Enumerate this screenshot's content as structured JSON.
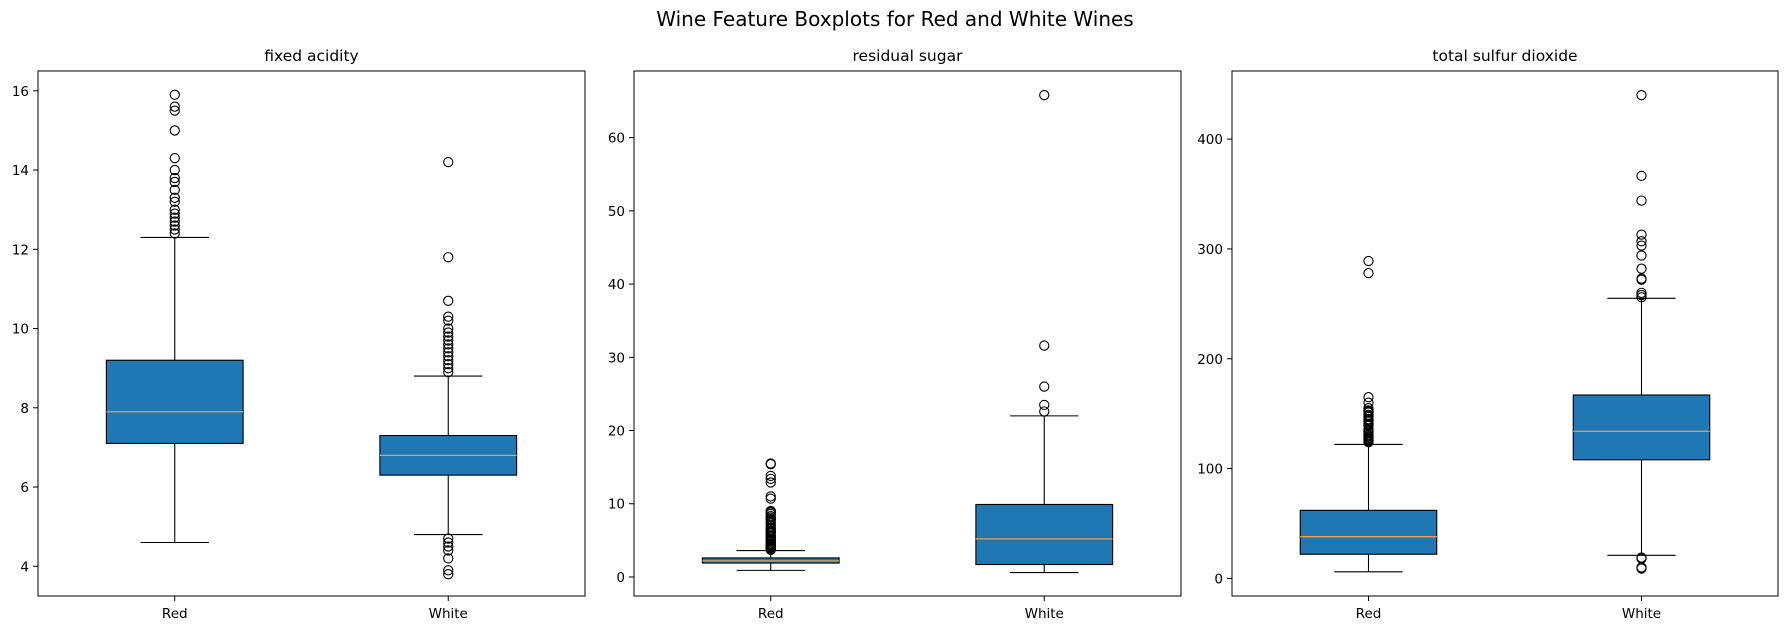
{
  "figure": {
    "title": "Wine Feature Boxplots for Red and White Wines"
  },
  "colors": {
    "box_fill": "#1f77b4",
    "median": "#e8a253",
    "stroke": "#000000"
  },
  "chart_data": [
    {
      "type": "boxplot",
      "title": "fixed acidity",
      "categories": [
        "Red",
        "White"
      ],
      "ylim": [
        3.25,
        16.5
      ],
      "yticks": [
        4,
        6,
        8,
        10,
        12,
        14,
        16
      ],
      "boxes": [
        {
          "name": "Red",
          "whislo": 4.6,
          "q1": 7.1,
          "med": 7.9,
          "q3": 9.2,
          "whishi": 12.3,
          "fliers": [
            12.4,
            12.5,
            12.6,
            12.7,
            12.8,
            12.9,
            13.0,
            13.2,
            13.3,
            13.5,
            13.7,
            13.8,
            14.0,
            14.3,
            15.0,
            15.5,
            15.6,
            15.9
          ]
        },
        {
          "name": "White",
          "whislo": 4.8,
          "q1": 6.3,
          "med": 6.8,
          "q3": 7.3,
          "whishi": 8.8,
          "fliers": [
            3.8,
            3.9,
            4.2,
            4.4,
            4.5,
            4.6,
            4.7,
            8.9,
            9.0,
            9.1,
            9.2,
            9.3,
            9.4,
            9.5,
            9.6,
            9.7,
            9.8,
            9.9,
            10.0,
            10.2,
            10.3,
            10.7,
            11.8,
            14.2
          ]
        }
      ]
    },
    {
      "type": "boxplot",
      "title": "residual sugar",
      "categories": [
        "Red",
        "White"
      ],
      "ylim": [
        -2.6,
        69.1
      ],
      "yticks": [
        0,
        10,
        20,
        30,
        40,
        50,
        60
      ],
      "boxes": [
        {
          "name": "Red",
          "whislo": 0.9,
          "q1": 1.9,
          "med": 2.2,
          "q3": 2.6,
          "whishi": 3.6,
          "fliers": [
            3.7,
            3.8,
            3.9,
            4.0,
            4.1,
            4.2,
            4.3,
            4.4,
            4.5,
            4.6,
            4.8,
            5.0,
            5.1,
            5.2,
            5.4,
            5.5,
            5.6,
            5.8,
            6.0,
            6.1,
            6.2,
            6.4,
            6.6,
            6.7,
            7.0,
            7.3,
            7.5,
            7.8,
            7.9,
            8.1,
            8.3,
            8.6,
            8.8,
            8.9,
            9.0,
            10.7,
            11.0,
            12.9,
            13.4,
            13.8,
            15.4,
            15.5
          ]
        },
        {
          "name": "White",
          "whislo": 0.6,
          "q1": 1.7,
          "med": 5.2,
          "q3": 9.9,
          "whishi": 22.0,
          "fliers": [
            22.6,
            23.5,
            26.0,
            31.6,
            65.8
          ]
        }
      ]
    },
    {
      "type": "boxplot",
      "title": "total sulfur dioxide",
      "categories": [
        "Red",
        "White"
      ],
      "ylim": [
        -16,
        462
      ],
      "yticks": [
        0,
        100,
        200,
        300,
        400
      ],
      "boxes": [
        {
          "name": "Red",
          "whislo": 6,
          "q1": 22,
          "med": 38,
          "q3": 62,
          "whishi": 122,
          "fliers": [
            124,
            125,
            126,
            127,
            128,
            129,
            130,
            131,
            133,
            134,
            135,
            136,
            139,
            140,
            141,
            143,
            144,
            145,
            147,
            148,
            149,
            151,
            152,
            153,
            155,
            160,
            165,
            278,
            289
          ]
        },
        {
          "name": "White",
          "whislo": 21,
          "q1": 108,
          "med": 134,
          "q3": 167,
          "whishi": 255,
          "fliers": [
            9,
            10,
            18,
            19,
            256,
            258,
            260,
            272,
            273,
            282,
            294,
            303,
            307,
            313,
            344,
            366.5,
            440
          ]
        }
      ]
    }
  ]
}
